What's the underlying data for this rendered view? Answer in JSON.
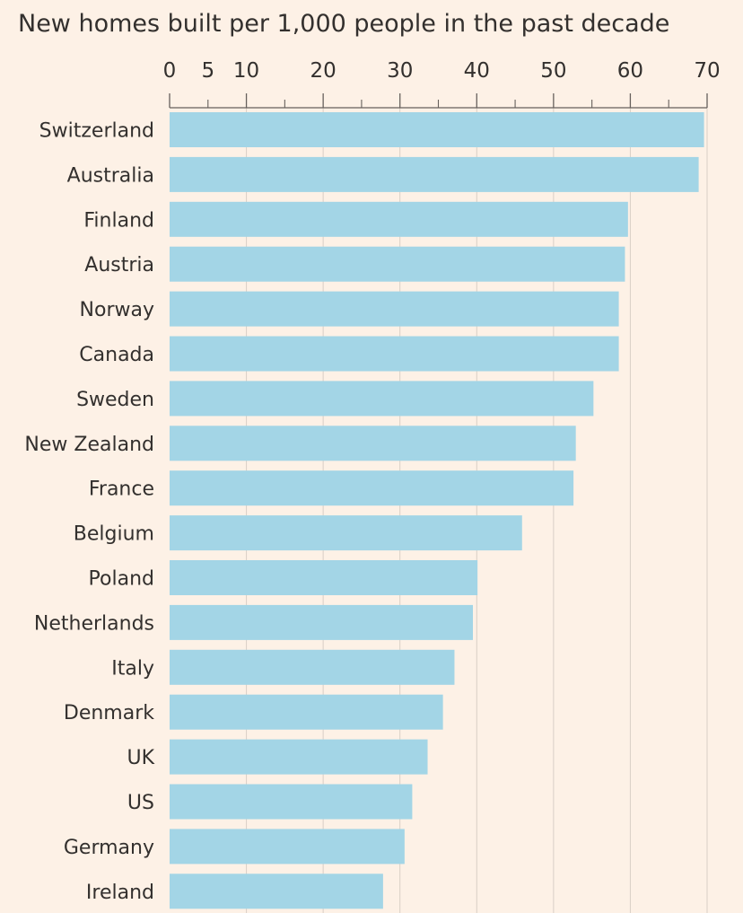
{
  "chart_data": {
    "type": "bar",
    "orientation": "horizontal",
    "title": "New homes built per 1,000 people in the past decade",
    "xlabel": "",
    "ylabel": "",
    "xlim": [
      0,
      70
    ],
    "ticks": [
      0,
      5,
      10,
      20,
      30,
      40,
      50,
      60,
      70
    ],
    "tick_labels": [
      "0",
      "5",
      "10",
      "20",
      "30",
      "40",
      "50",
      "60",
      "70"
    ],
    "grid": true,
    "bar_color": "#a3d5e6",
    "categories": [
      "Switzerland",
      "Australia",
      "Finland",
      "Austria",
      "Norway",
      "Canada",
      "Sweden",
      "New Zealand",
      "France",
      "Belgium",
      "Poland",
      "Netherlands",
      "Italy",
      "Denmark",
      "UK",
      "US",
      "Germany",
      "Ireland"
    ],
    "values": [
      69.6,
      68.9,
      59.7,
      59.3,
      58.5,
      58.5,
      55.2,
      52.9,
      52.6,
      45.9,
      40.1,
      39.5,
      37.1,
      35.6,
      33.6,
      31.6,
      30.6,
      27.8
    ]
  }
}
